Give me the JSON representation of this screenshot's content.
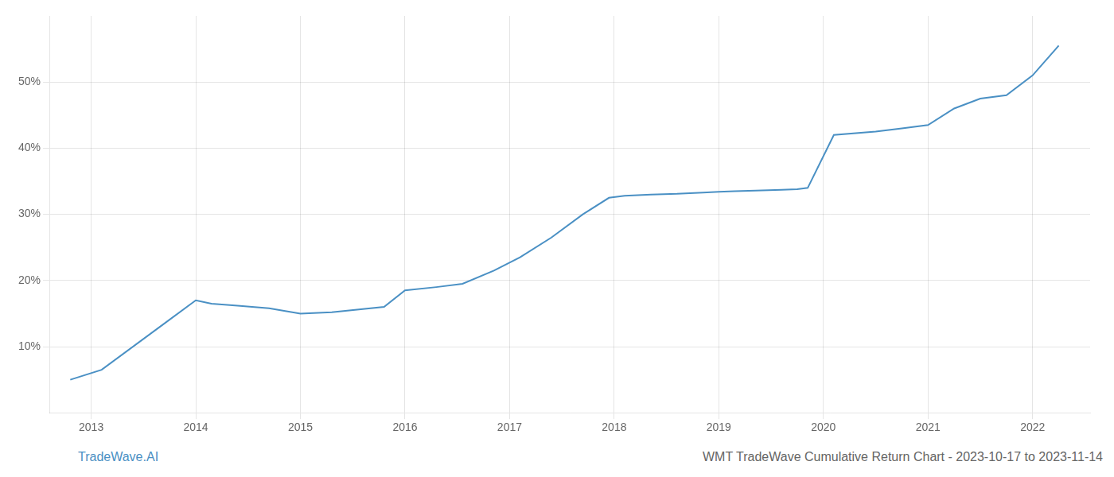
{
  "chart_data": {
    "type": "line",
    "x": [
      2012.8,
      2013.1,
      2013.7,
      2014.0,
      2014.15,
      2014.4,
      2014.7,
      2015.0,
      2015.3,
      2015.8,
      2016.0,
      2016.3,
      2016.55,
      2016.85,
      2017.1,
      2017.4,
      2017.7,
      2017.95,
      2018.1,
      2018.35,
      2018.6,
      2018.85,
      2019.0,
      2019.15,
      2019.35,
      2019.6,
      2019.75,
      2019.85,
      2020.1,
      2020.5,
      2020.75,
      2021.0,
      2021.25,
      2021.5,
      2021.75,
      2022.0,
      2022.25
    ],
    "values": [
      5.0,
      6.5,
      13.5,
      17.0,
      16.5,
      16.2,
      15.8,
      15.0,
      15.2,
      16.0,
      18.5,
      19.0,
      19.5,
      21.5,
      23.5,
      26.5,
      30.0,
      32.5,
      32.8,
      33.0,
      33.1,
      33.3,
      33.4,
      33.5,
      33.6,
      33.7,
      33.8,
      34.0,
      42.0,
      42.5,
      43.0,
      43.5,
      46.0,
      47.5,
      48.0,
      51.0,
      55.5
    ],
    "color": "#4a90c4",
    "xlim": [
      2012.6,
      2022.55
    ],
    "xticks": [
      2013,
      2014,
      2015,
      2016,
      2017,
      2018,
      2019,
      2020,
      2021,
      2022
    ],
    "ylim": [
      0,
      60
    ],
    "yticks": [
      {
        "value": 10,
        "label": "10%"
      },
      {
        "value": 20,
        "label": "20%"
      },
      {
        "value": 30,
        "label": "30%"
      },
      {
        "value": 40,
        "label": "40%"
      },
      {
        "value": 50,
        "label": "50%"
      }
    ],
    "grid": true,
    "annotations": [
      {
        "text": "TradeWave.AI",
        "color": "#4a90c4"
      },
      {
        "text": "WMT TradeWave Cumulative Return Chart - 2023-10-17 to 2023-11-14",
        "color": "#666666"
      }
    ]
  }
}
